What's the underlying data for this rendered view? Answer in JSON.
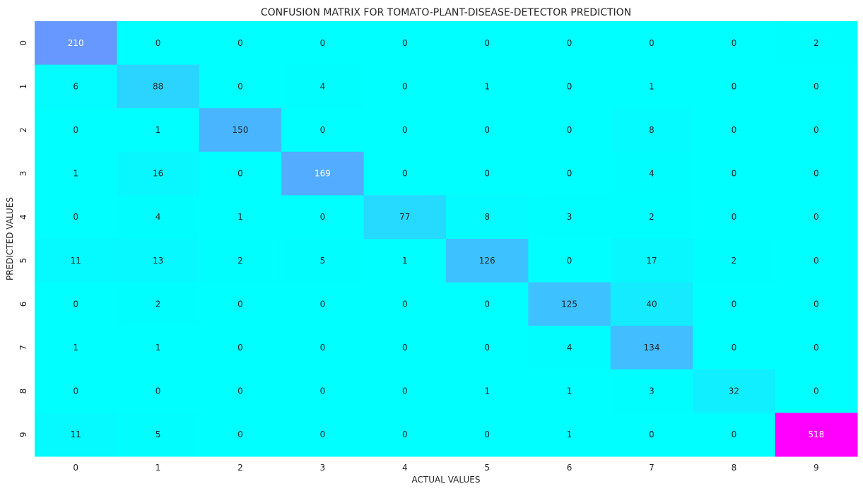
{
  "chart_data": {
    "type": "heatmap",
    "title": "CONFUSION MATRIX FOR TOMATO-PLANT-DISEASE-DETECTOR PREDICTION",
    "xlabel": "ACTUAL VALUES",
    "ylabel": "PREDICTED VALUES",
    "x_categories": [
      "0",
      "1",
      "2",
      "3",
      "4",
      "5",
      "6",
      "7",
      "8",
      "9"
    ],
    "y_categories": [
      "0",
      "1",
      "2",
      "3",
      "4",
      "5",
      "6",
      "7",
      "8",
      "9"
    ],
    "matrix": [
      [
        210,
        0,
        0,
        0,
        0,
        0,
        0,
        0,
        0,
        2
      ],
      [
        6,
        88,
        0,
        4,
        0,
        1,
        0,
        1,
        0,
        0
      ],
      [
        0,
        1,
        150,
        0,
        0,
        0,
        0,
        8,
        0,
        0
      ],
      [
        1,
        16,
        0,
        169,
        0,
        0,
        0,
        4,
        0,
        0
      ],
      [
        0,
        4,
        1,
        0,
        77,
        8,
        3,
        2,
        0,
        0
      ],
      [
        11,
        13,
        2,
        5,
        1,
        126,
        0,
        17,
        2,
        0
      ],
      [
        0,
        2,
        0,
        0,
        0,
        0,
        125,
        40,
        0,
        0
      ],
      [
        1,
        1,
        0,
        0,
        0,
        0,
        4,
        134,
        0,
        0
      ],
      [
        0,
        0,
        0,
        0,
        0,
        1,
        1,
        3,
        32,
        0
      ],
      [
        11,
        5,
        0,
        0,
        0,
        0,
        1,
        0,
        0,
        518
      ]
    ],
    "colormap": "cool",
    "colorbar": false,
    "color_low": "#00ffff",
    "color_high": "#ff00ff"
  }
}
